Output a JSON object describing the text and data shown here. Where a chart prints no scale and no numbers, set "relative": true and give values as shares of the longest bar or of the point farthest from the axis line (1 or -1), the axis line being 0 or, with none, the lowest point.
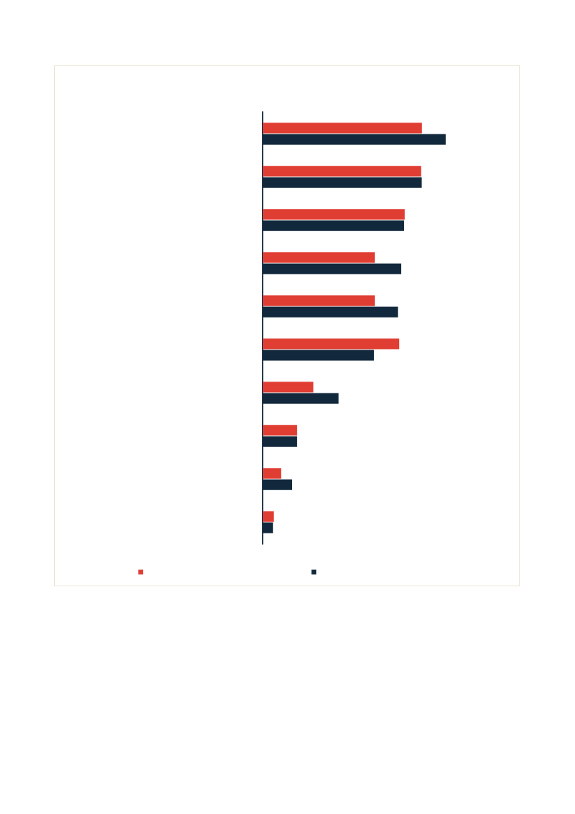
{
  "chart_data": {
    "type": "bar",
    "orientation": "horizontal",
    "relative": true,
    "categories": [
      null,
      null,
      null,
      null,
      null,
      null,
      null,
      null,
      null,
      null
    ],
    "series": [
      {
        "color": "#e03e33",
        "values": [
          0.87,
          0.866,
          0.776,
          0.612,
          0.612,
          0.746,
          0.276,
          0.187,
          0.1,
          0.06
        ]
      },
      {
        "color": "#12283d",
        "values": [
          1,
          0.869,
          0.772,
          0.757,
          0.739,
          0.608,
          0.414,
          0.187,
          0.16,
          0.056
        ]
      }
    ]
  }
}
